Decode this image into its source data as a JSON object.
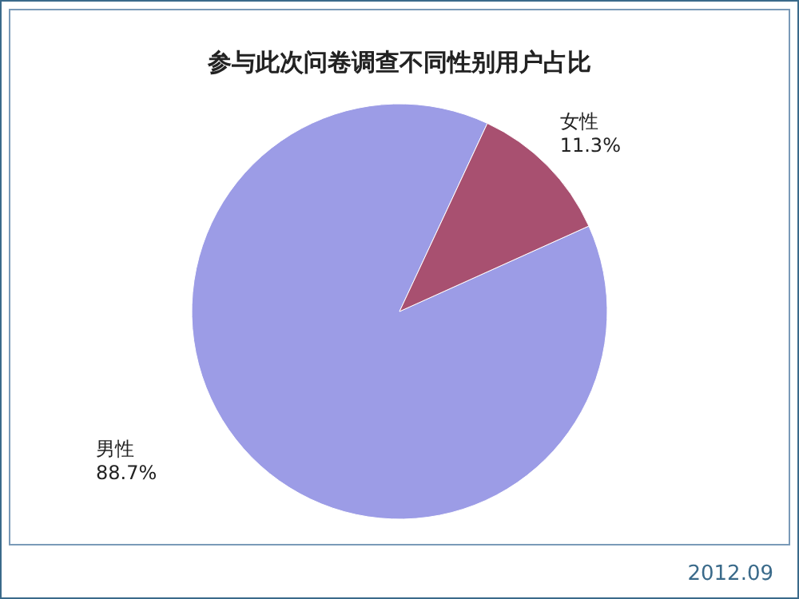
{
  "chart_data": {
    "type": "pie",
    "title": "参与此次问卷调查不同性别用户占比",
    "categories": [
      "男性",
      "女性"
    ],
    "values": [
      88.7,
      11.3
    ],
    "value_labels": [
      "88.7%",
      "11.3%"
    ],
    "colors": [
      "#9c9ce6",
      "#a85070"
    ],
    "annotations": [
      "2012.09"
    ]
  }
}
